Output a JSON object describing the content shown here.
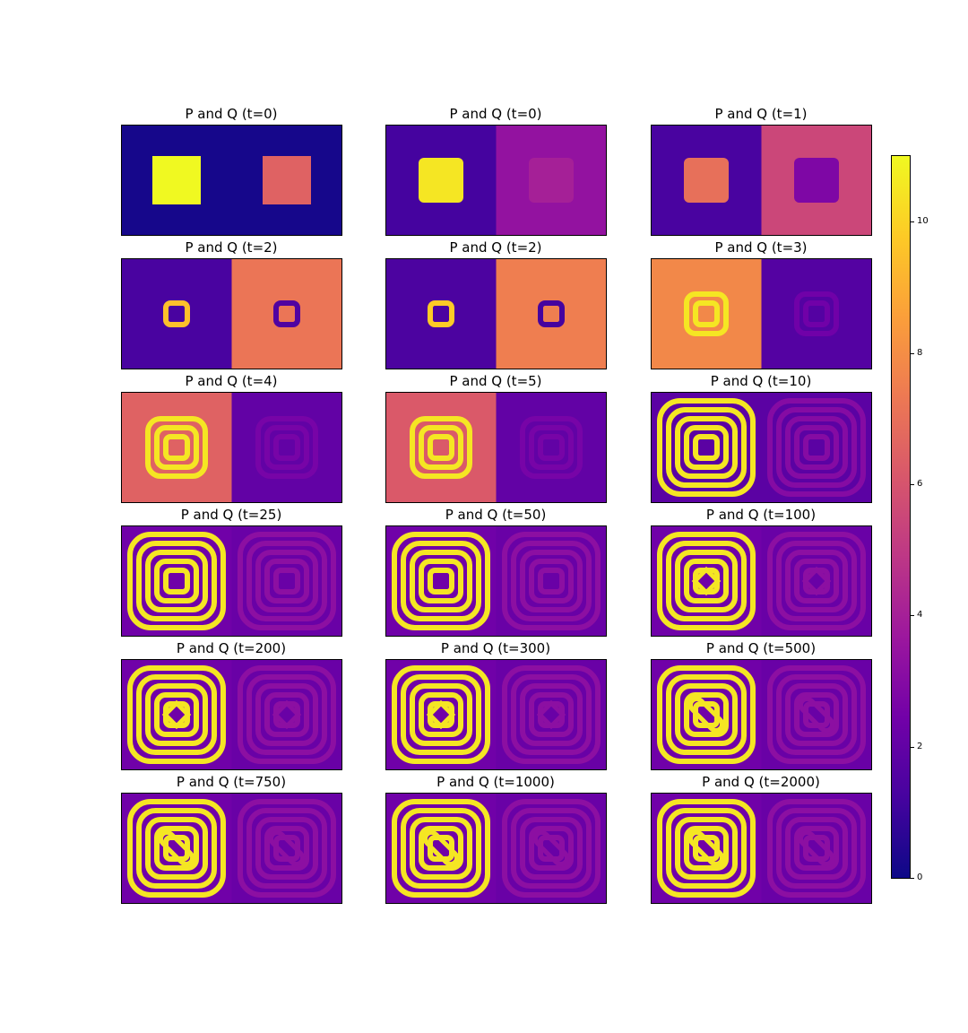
{
  "chart_data": {
    "type": "heatmap",
    "colormap": "plasma",
    "colorbar": {
      "min": 0,
      "max": 11,
      "ticks": [
        0,
        2,
        4,
        6,
        8,
        10
      ],
      "tick_labels": [
        "0",
        "2",
        "4",
        "6",
        "8",
        "10"
      ]
    },
    "panels": [
      {
        "title": "P and Q (t=0)",
        "pattern": "init",
        "left_mean": 0.2,
        "right_mean": 0.2,
        "left_peak": 11,
        "right_peak": 6.5,
        "rings": 0,
        "diamond": 0
      },
      {
        "title": "P and Q (t=0)",
        "pattern": "blur",
        "left_mean": 1.2,
        "right_mean": 3.4,
        "left_peak": 10.5,
        "right_peak": 4.0,
        "rings": 0,
        "diamond": 0
      },
      {
        "title": "P and Q (t=1)",
        "pattern": "blur",
        "left_mean": 1.3,
        "right_mean": 5.5,
        "left_peak": 7.0,
        "right_peak": 2.8,
        "rings": 0,
        "diamond": 0
      },
      {
        "title": "P and Q (t=2)",
        "pattern": "early",
        "left_mean": 1.3,
        "right_mean": 7.2,
        "left_peak": 9.5,
        "right_peak": 1.5,
        "rings": 1,
        "diamond": 0
      },
      {
        "title": "P and Q (t=2)",
        "pattern": "early",
        "left_mean": 1.4,
        "right_mean": 7.5,
        "left_peak": 9.8,
        "right_peak": 1.2,
        "rings": 1,
        "diamond": 0
      },
      {
        "title": "P and Q (t=3)",
        "pattern": "early",
        "left_mean": 7.8,
        "right_mean": 1.6,
        "left_peak": 10.5,
        "right_peak": 2.4,
        "rings": 2,
        "diamond": 0
      },
      {
        "title": "P and Q (t=4)",
        "pattern": "early",
        "left_mean": 6.5,
        "right_mean": 2.0,
        "left_peak": 10.5,
        "right_peak": 2.6,
        "rings": 3,
        "diamond": 0
      },
      {
        "title": "P and Q (t=5)",
        "pattern": "early",
        "left_mean": 6.2,
        "right_mean": 2.0,
        "left_peak": 10.5,
        "right_peak": 2.6,
        "rings": 3,
        "diamond": 0
      },
      {
        "title": "P and Q (t=10)",
        "pattern": "stripe",
        "left_mean": 1.8,
        "right_mean": 1.8,
        "left_peak": 10.5,
        "right_peak": 3.0,
        "rings": 5,
        "diamond": 0
      },
      {
        "title": "P and Q (t=25)",
        "pattern": "stripe",
        "left_mean": 2.4,
        "right_mean": 2.2,
        "left_peak": 10.5,
        "right_peak": 3.2,
        "rings": 5,
        "diamond": 0
      },
      {
        "title": "P and Q (t=50)",
        "pattern": "stripe",
        "left_mean": 2.4,
        "right_mean": 2.2,
        "left_peak": 10.5,
        "right_peak": 3.2,
        "rings": 5,
        "diamond": 0
      },
      {
        "title": "P and Q (t=100)",
        "pattern": "stripe",
        "left_mean": 2.4,
        "right_mean": 2.2,
        "left_peak": 10.5,
        "right_peak": 3.2,
        "rings": 5,
        "diamond": 1
      },
      {
        "title": "P and Q (t=200)",
        "pattern": "stripe",
        "left_mean": 2.4,
        "right_mean": 2.2,
        "left_peak": 10.5,
        "right_peak": 3.2,
        "rings": 5,
        "diamond": 1
      },
      {
        "title": "P and Q (t=300)",
        "pattern": "stripe",
        "left_mean": 2.4,
        "right_mean": 2.2,
        "left_peak": 10.5,
        "right_peak": 3.2,
        "rings": 5,
        "diamond": 1
      },
      {
        "title": "P and Q (t=500)",
        "pattern": "stripe",
        "left_mean": 2.4,
        "right_mean": 2.2,
        "left_peak": 10.5,
        "right_peak": 3.2,
        "rings": 5,
        "diamond": 2
      },
      {
        "title": "P and Q (t=750)",
        "pattern": "stripe",
        "left_mean": 2.4,
        "right_mean": 2.2,
        "left_peak": 10.5,
        "right_peak": 3.2,
        "rings": 5,
        "diamond": 2
      },
      {
        "title": "P and Q (t=1000)",
        "pattern": "stripe",
        "left_mean": 2.4,
        "right_mean": 2.2,
        "left_peak": 10.5,
        "right_peak": 3.2,
        "rings": 5,
        "diamond": 2
      },
      {
        "title": "P and Q (t=2000)",
        "pattern": "stripe",
        "left_mean": 2.4,
        "right_mean": 2.2,
        "left_peak": 10.5,
        "right_peak": 3.2,
        "rings": 5,
        "diamond": 2
      }
    ]
  }
}
